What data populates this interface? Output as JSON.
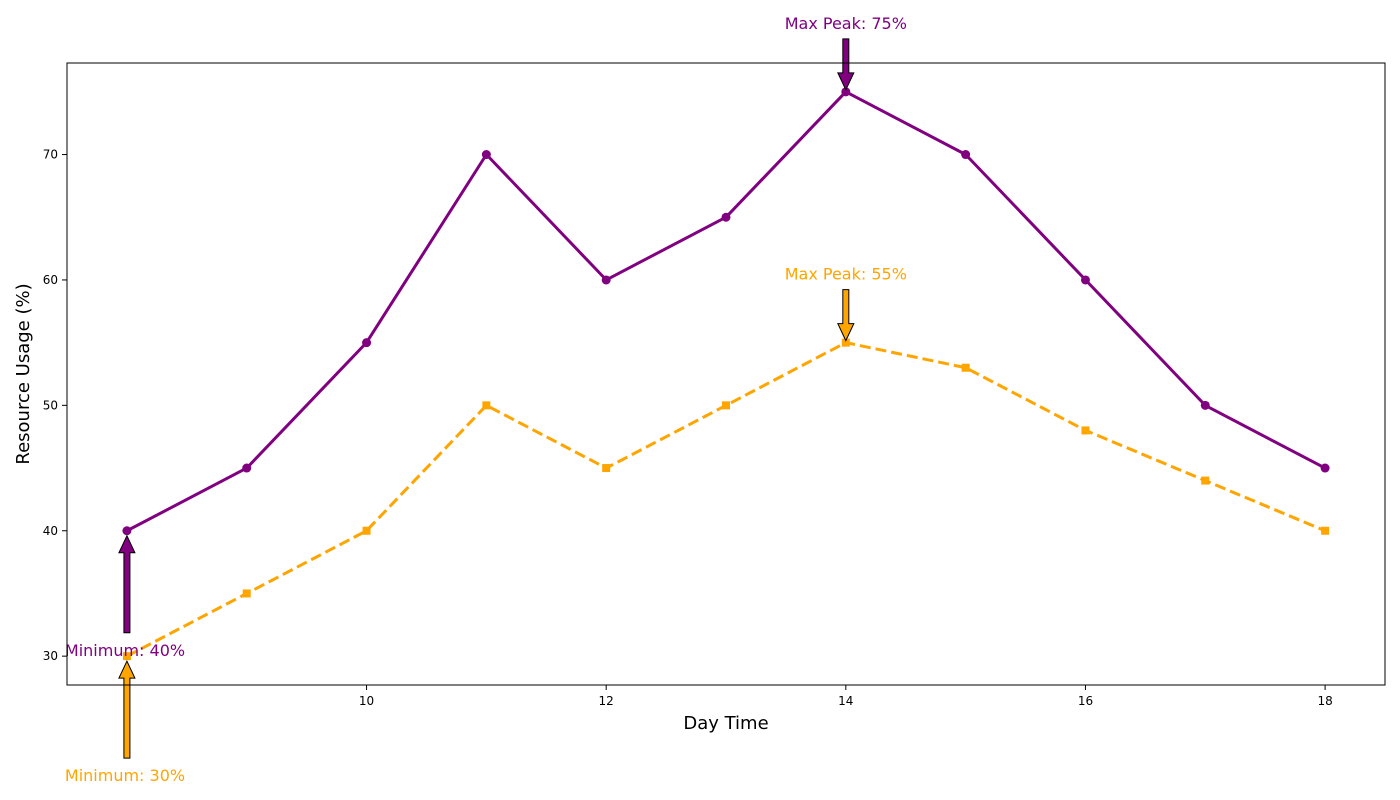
{
  "chart_data": {
    "type": "line",
    "title": "",
    "xlabel": "Day Time",
    "ylabel": "Resource Usage (%)",
    "xlim": [
      7.5,
      18.5
    ],
    "ylim": [
      27.7,
      77.3
    ],
    "x_ticks": [
      10,
      12,
      14,
      16,
      18
    ],
    "y_ticks": [
      30,
      40,
      50,
      60,
      70
    ],
    "grid": false,
    "x": [
      8,
      9,
      10,
      11,
      12,
      13,
      14,
      15,
      16,
      17,
      18
    ],
    "series": [
      {
        "values": [
          40,
          45,
          55,
          70,
          60,
          65,
          75,
          70,
          60,
          50,
          45
        ],
        "color": "#800080",
        "line_style": "solid",
        "marker": "circle"
      },
      {
        "values": [
          30,
          35,
          40,
          50,
          45,
          50,
          55,
          53,
          48,
          44,
          40
        ],
        "color": "#FFA500",
        "line_style": "dashed",
        "marker": "square"
      }
    ],
    "annotations": [
      {
        "text": "Max Peak: 75%",
        "series": 0,
        "x": 14,
        "y": 75,
        "color": "#800080",
        "kind": "peak"
      },
      {
        "text": "Minimum: 40%",
        "series": 0,
        "x": 8,
        "y": 40,
        "color": "#800080",
        "kind": "minimum"
      },
      {
        "text": "Max Peak: 55%",
        "series": 1,
        "x": 14,
        "y": 55,
        "color": "#FFA500",
        "kind": "peak"
      },
      {
        "text": "Minimum: 30%",
        "series": 1,
        "x": 8,
        "y": 30,
        "color": "#FFA500",
        "kind": "minimum"
      }
    ]
  }
}
